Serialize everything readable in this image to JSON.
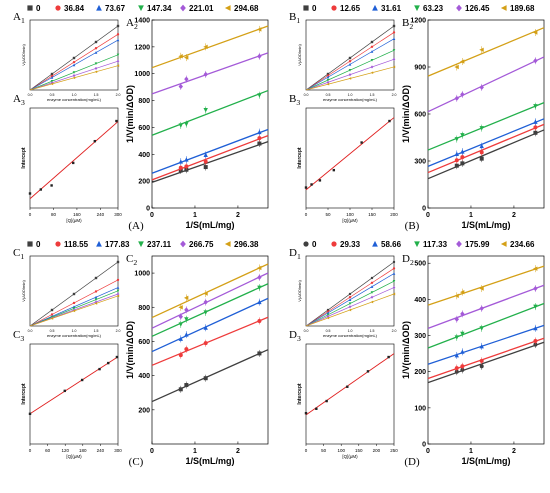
{
  "panels": [
    {
      "caption": "(A)",
      "legend": [
        "0",
        "36.84",
        "73.67",
        "147.34",
        "221.01",
        "294.68"
      ],
      "markers": [
        "square",
        "circle",
        "triangle-up",
        "triangle-down",
        "diamond",
        "triangle-left"
      ],
      "sub1_label": "A1",
      "sub2_label": "A2",
      "sub3_label": "A3"
    },
    {
      "caption": "(B)",
      "legend": [
        "0",
        "12.65",
        "31.61",
        "63.23",
        "126.45",
        "189.68"
      ],
      "markers": [
        "square",
        "circle",
        "triangle-up",
        "triangle-down",
        "diamond",
        "triangle-left"
      ],
      "sub1_label": "B1",
      "sub2_label": "B2",
      "sub3_label": "B3"
    },
    {
      "caption": "(C)",
      "legend": [
        "0",
        "118.55",
        "177.83",
        "237.11",
        "266.75",
        "296.38"
      ],
      "markers": [
        "square",
        "circle",
        "triangle-up",
        "triangle-down",
        "diamond",
        "triangle-left"
      ],
      "sub1_label": "C1",
      "sub2_label": "C2",
      "sub3_label": "C3"
    },
    {
      "caption": "(D)",
      "legend": [
        "0",
        "29.33",
        "58.66",
        "117.33",
        "175.99",
        "234.66"
      ],
      "markers": [
        "circle",
        "circle",
        "triangle-up",
        "triangle-down",
        "diamond",
        "triangle-left"
      ],
      "sub1_label": "D1",
      "sub2_label": "D2",
      "sub3_label": "D3"
    }
  ],
  "series_colors": [
    "#3f3f3f",
    "#ee3b3b",
    "#1f5fd6",
    "#22b04b",
    "#a45ad8",
    "#d4a017"
  ],
  "chart_data": [
    {
      "type": "scatter",
      "panel": "A2",
      "xlabel": "1/S(mL/mg)",
      "ylabel": "1/V(min/ΔOD)",
      "xlim": [
        0,
        2.7
      ],
      "ylim": [
        0,
        1400
      ],
      "xticks": [
        0,
        1,
        2
      ],
      "yticks": [
        0,
        200,
        400,
        600,
        800,
        1000,
        1200,
        1400
      ],
      "x": [
        0.67,
        0.8,
        1.25,
        2.5
      ],
      "series": [
        {
          "name": "0",
          "values": [
            280,
            285,
            305,
            480
          ]
        },
        {
          "name": "36.84",
          "values": [
            300,
            310,
            345,
            520
          ]
        },
        {
          "name": "73.67",
          "values": [
            345,
            360,
            395,
            565
          ]
        },
        {
          "name": "147.34",
          "values": [
            615,
            625,
            730,
            840
          ]
        },
        {
          "name": "221.01",
          "values": [
            905,
            960,
            995,
            1130
          ]
        },
        {
          "name": "294.68",
          "values": [
            1130,
            1120,
            1200,
            1330
          ]
        }
      ]
    },
    {
      "type": "scatter",
      "panel": "B2",
      "xlabel": "1/S(mL/mg)",
      "ylabel": "1/V(min/ΔOD)",
      "xlim": [
        0,
        2.7
      ],
      "ylim": [
        0,
        1200
      ],
      "xticks": [
        0,
        1,
        2
      ],
      "yticks": [
        0,
        300,
        600,
        900,
        1200
      ],
      "x": [
        0.67,
        0.8,
        1.25,
        2.5
      ],
      "series": [
        {
          "name": "0",
          "values": [
            270,
            285,
            315,
            480
          ]
        },
        {
          "name": "12.65",
          "values": [
            305,
            325,
            355,
            515
          ]
        },
        {
          "name": "31.61",
          "values": [
            345,
            360,
            395,
            550
          ]
        },
        {
          "name": "63.23",
          "values": [
            440,
            465,
            510,
            650
          ]
        },
        {
          "name": "126.45",
          "values": [
            700,
            725,
            770,
            940
          ]
        },
        {
          "name": "189.68",
          "values": [
            900,
            935,
            1010,
            1120
          ]
        }
      ]
    },
    {
      "type": "scatter",
      "panel": "C2",
      "xlabel": "1/S(mL/mg)",
      "ylabel": "1/V(min/ΔOD)",
      "xlim": [
        0,
        2.7
      ],
      "ylim": [
        0,
        1100
      ],
      "xticks": [
        0,
        1,
        2
      ],
      "yticks": [
        200,
        400,
        600,
        800,
        1000
      ],
      "x": [
        0.67,
        0.8,
        1.25,
        2.5
      ],
      "series": [
        {
          "name": "0",
          "values": [
            320,
            345,
            385,
            530
          ]
        },
        {
          "name": "118.55",
          "values": [
            520,
            555,
            590,
            720
          ]
        },
        {
          "name": "177.83",
          "values": [
            615,
            640,
            680,
            830
          ]
        },
        {
          "name": "237.11",
          "values": [
            700,
            730,
            770,
            915
          ]
        },
        {
          "name": "266.75",
          "values": [
            745,
            785,
            830,
            975
          ]
        },
        {
          "name": "296.38",
          "values": [
            800,
            855,
            880,
            1030
          ]
        }
      ]
    },
    {
      "type": "scatter",
      "panel": "D2",
      "xlabel": "1/S(mL/mg)",
      "ylabel": "1/V(min/ΔOD)",
      "xlim": [
        0,
        2.7
      ],
      "ylim": [
        0,
        520
      ],
      "xticks": [
        0,
        1,
        2
      ],
      "yticks": [
        0,
        100,
        200,
        300,
        400,
        500
      ],
      "x": [
        0.67,
        0.8,
        1.25,
        2.5
      ],
      "series": [
        {
          "name": "0",
          "values": [
            200,
            205,
            215,
            275
          ]
        },
        {
          "name": "29.33",
          "values": [
            210,
            215,
            230,
            285
          ]
        },
        {
          "name": "58.66",
          "values": [
            245,
            255,
            270,
            320
          ]
        },
        {
          "name": "117.33",
          "values": [
            295,
            305,
            320,
            380
          ]
        },
        {
          "name": "175.99",
          "values": [
            345,
            360,
            375,
            430
          ]
        },
        {
          "name": "234.66",
          "values": [
            410,
            420,
            430,
            485
          ]
        }
      ]
    },
    {
      "type": "scatter",
      "panel": "A3",
      "xlabel": "[Q](μM)",
      "ylabel": "Intercept",
      "xlim": [
        0,
        300
      ],
      "xticks": [
        0,
        80,
        160,
        240,
        300
      ],
      "x": [
        0,
        36.84,
        73.67,
        147.34,
        221.01,
        294.68
      ],
      "values": [
        180,
        230,
        280,
        560,
        830,
        1080
      ]
    },
    {
      "type": "scatter",
      "panel": "B3",
      "xlabel": "[Q](μM)",
      "ylabel": "Intercept",
      "xlim": [
        0,
        200
      ],
      "xticks": [
        0,
        50,
        100,
        150,
        200
      ],
      "x": [
        0,
        12.65,
        31.61,
        63.23,
        126.45,
        189.68
      ],
      "values": [
        200,
        230,
        270,
        370,
        640,
        850
      ]
    },
    {
      "type": "scatter",
      "panel": "C3",
      "xlabel": "[Q](μM)",
      "ylabel": "Intercept",
      "xlim": [
        0,
        300
      ],
      "xticks": [
        0,
        60,
        120,
        180,
        240,
        300
      ],
      "x": [
        0,
        118.55,
        177.83,
        237.11,
        266.75,
        296.38
      ],
      "values": [
        250,
        440,
        530,
        620,
        670,
        720
      ]
    },
    {
      "type": "scatter",
      "panel": "D3",
      "xlabel": "[Q](μM)",
      "ylabel": "Intercept",
      "xlim": [
        0,
        250
      ],
      "xticks": [
        0,
        50,
        100,
        150,
        200,
        250
      ],
      "x": [
        0,
        29.33,
        58.66,
        117.33,
        175.99,
        234.66
      ],
      "values": [
        140,
        160,
        195,
        260,
        330,
        395
      ]
    },
    {
      "type": "line",
      "panel": "A1",
      "xlabel": "enzyme concentration(mg/mL)",
      "ylabel": "V(ΔOD/min)",
      "xticks": [
        "0.0",
        "0.5",
        "1.0",
        "1.5",
        "2.0"
      ],
      "slopes": [
        1.0,
        0.87,
        0.78,
        0.55,
        0.45,
        0.38
      ]
    },
    {
      "type": "line",
      "panel": "B1",
      "xlabel": "enzyme concentration(mg/mL)",
      "ylabel": "V(ΔOD/min)",
      "xticks": [
        "0.0",
        "0.5",
        "1.0",
        "1.5",
        "2.0"
      ],
      "slopes": [
        1.0,
        0.9,
        0.8,
        0.62,
        0.48,
        0.36
      ]
    },
    {
      "type": "line",
      "panel": "C1",
      "xlabel": "enzyme concentration(mg/mL)",
      "ylabel": "V(ΔOD/min)",
      "xticks": [
        "0.0",
        "0.5",
        "1.0",
        "1.5",
        "2.0"
      ],
      "slopes": [
        1.0,
        0.72,
        0.6,
        0.55,
        0.5,
        0.47
      ]
    },
    {
      "type": "line",
      "panel": "D1",
      "xlabel": "enzyme concentration(mg/mL)",
      "ylabel": "V(ΔOD/min)",
      "xticks": [
        "0.0",
        "0.5",
        "1.0",
        "1.5",
        "2.0"
      ],
      "slopes": [
        1.0,
        0.9,
        0.82,
        0.7,
        0.6,
        0.5
      ]
    }
  ]
}
